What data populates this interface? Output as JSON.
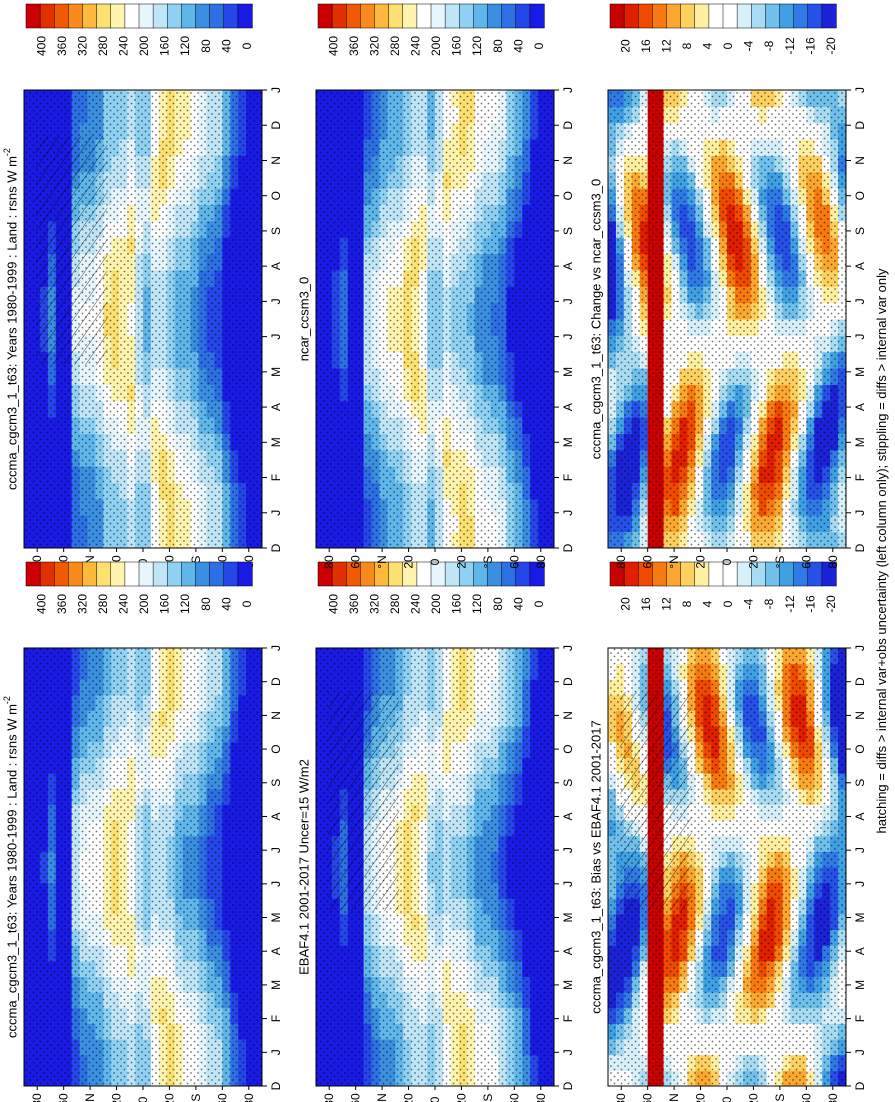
{
  "figure": {
    "footnote": "hatching = diffs > internal var+obs uncertainty (left column only); stippling = diffs > internal var only"
  },
  "chart_data": [
    {
      "type": "heatmap",
      "title": "cccma_cgcm3_1_t63: Years 1980-1999 : Land : rsns W m",
      "title_sup": "-2",
      "months": [
        "D",
        "J",
        "F",
        "M",
        "A",
        "M",
        "J",
        "J",
        "A",
        "S",
        "O",
        "N",
        "D",
        "J"
      ],
      "lat_ticks": [
        "80",
        "60",
        "°N",
        "20",
        "0",
        "20",
        "°S",
        "60",
        "80"
      ],
      "colorbar": [
        "400",
        "360",
        "320",
        "280",
        "240",
        "200",
        "160",
        "120",
        "80",
        "40",
        "0"
      ],
      "hatching": true
    },
    {
      "type": "heatmap",
      "title": "cccma_cgcm3_1_t63: Years 1980-1999 : Land : rsns W m",
      "title_sup": "-2",
      "months": [
        "D",
        "J",
        "F",
        "M",
        "A",
        "M",
        "J",
        "J",
        "A",
        "S",
        "O",
        "N",
        "D",
        "J"
      ],
      "lat_ticks": [
        "80",
        "60",
        "°N",
        "20",
        "0",
        "20",
        "°S",
        "60",
        "80"
      ],
      "colorbar": [
        "400",
        "360",
        "320",
        "280",
        "240",
        "200",
        "160",
        "120",
        "80",
        "40",
        "0"
      ],
      "hatching": false
    },
    {
      "type": "heatmap",
      "title": "EBAF4.1 2001-2017 Uncer=15 W/m2",
      "months": [
        "D",
        "J",
        "F",
        "M",
        "A",
        "M",
        "J",
        "J",
        "A",
        "S",
        "O",
        "N",
        "D",
        "J"
      ],
      "lat_ticks": [
        "80",
        "60",
        "°N",
        "20",
        "0",
        "20",
        "°S",
        "60",
        "80"
      ],
      "colorbar": [
        "400",
        "360",
        "320",
        "280",
        "240",
        "200",
        "160",
        "120",
        "80",
        "40",
        "0"
      ],
      "hatching": true
    },
    {
      "type": "heatmap",
      "title": "ncar_ccsm3_0",
      "months": [
        "D",
        "J",
        "F",
        "M",
        "A",
        "M",
        "J",
        "J",
        "A",
        "S",
        "O",
        "N",
        "D",
        "J"
      ],
      "lat_ticks": [
        "80",
        "60",
        "°N",
        "20",
        "0",
        "20",
        "°S",
        "60",
        "80"
      ],
      "colorbar": [
        "400",
        "360",
        "320",
        "280",
        "240",
        "200",
        "160",
        "120",
        "80",
        "40",
        "0"
      ],
      "hatching": false
    },
    {
      "type": "heatmap",
      "title": "cccma_cgcm3_1_t63: Bias vs EBAF4.1 2001-2017",
      "months": [
        "D",
        "J",
        "F",
        "M",
        "A",
        "M",
        "J",
        "J",
        "A",
        "S",
        "O",
        "N",
        "D",
        "J"
      ],
      "lat_ticks": [
        "80",
        "60",
        "°N",
        "20",
        "0",
        "20",
        "°S",
        "60",
        "80"
      ],
      "colorbar": [
        "20",
        "16",
        "12",
        "8",
        "4",
        "0",
        "-4",
        "-8",
        "-12",
        "-16",
        "-20"
      ],
      "hatching": true
    },
    {
      "type": "heatmap",
      "title": "cccma_cgcm3_1_t63: Change vs ncar_ccsm3_0",
      "months": [
        "D",
        "J",
        "F",
        "M",
        "A",
        "M",
        "J",
        "J",
        "A",
        "S",
        "O",
        "N",
        "D",
        "J"
      ],
      "lat_ticks": [
        "80",
        "60",
        "°N",
        "20",
        "0",
        "20",
        "°S",
        "60",
        "80"
      ],
      "colorbar": [
        "20",
        "16",
        "12",
        "8",
        "4",
        "0",
        "-4",
        "-8",
        "-12",
        "-16",
        "-20"
      ],
      "hatching": false
    }
  ],
  "colors": {
    "abs_scale": [
      "#cc0000",
      "#e03000",
      "#f05a00",
      "#f78a1a",
      "#fdb93a",
      "#fde072",
      "#fef4ae",
      "#ffffff",
      "#e7f6fc",
      "#bfe5f7",
      "#8fd1f2",
      "#5fb6ea",
      "#3a8fe0",
      "#2d6fe4",
      "#2546e8",
      "#1a1ae6"
    ],
    "diff_scale": [
      "#c80000",
      "#e01e00",
      "#f04a00",
      "#f77a10",
      "#fca830",
      "#fdd060",
      "#fef0a0",
      "#ffffff",
      "#ffffff",
      "#d8f0fa",
      "#a8dcf3",
      "#70c0ec",
      "#40a0e4",
      "#2f7ae6",
      "#2650e8",
      "#1c22d8"
    ]
  }
}
